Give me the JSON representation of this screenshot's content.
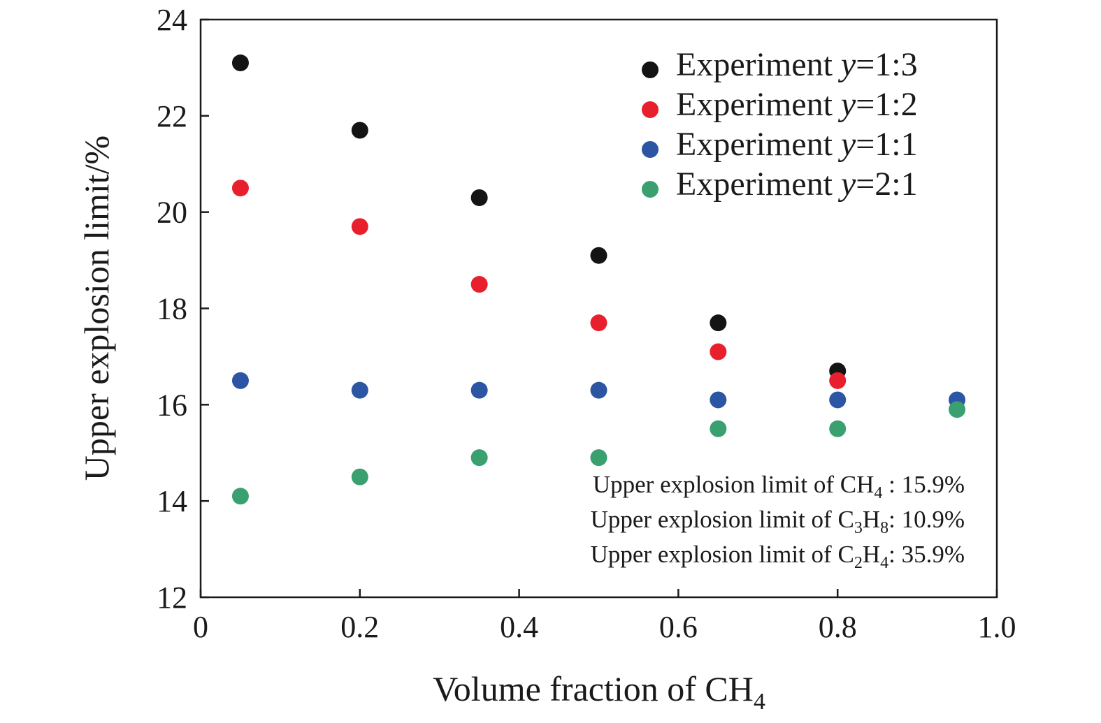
{
  "chart_data": {
    "type": "scatter",
    "xlabel": "Volume fraction of CH",
    "xlabel_sub": "4",
    "ylabel": "Upper explosion limit/%",
    "xlim": [
      0,
      1.0
    ],
    "ylim": [
      12,
      24
    ],
    "x_ticks": [
      "0",
      "0.2",
      "0.4",
      "0.6",
      "0.8",
      "1.0"
    ],
    "y_ticks": [
      "12",
      "14",
      "16",
      "18",
      "20",
      "22",
      "24"
    ],
    "legend_position": "top-right",
    "series": [
      {
        "name": "Experiment y=1:3",
        "label_prefix": "Experiment ",
        "label_var": "y",
        "label_ratio": "=1:3",
        "color": "#141414",
        "points": [
          [
            0.05,
            23.1
          ],
          [
            0.2,
            21.7
          ],
          [
            0.35,
            20.3
          ],
          [
            0.5,
            19.1
          ],
          [
            0.65,
            17.7
          ],
          [
            0.8,
            16.7
          ]
        ]
      },
      {
        "name": "Experiment y=1:2",
        "label_prefix": "Experiment ",
        "label_var": "y",
        "label_ratio": "=1:2",
        "color": "#e8202e",
        "points": [
          [
            0.05,
            20.5
          ],
          [
            0.2,
            19.7
          ],
          [
            0.35,
            18.5
          ],
          [
            0.5,
            17.7
          ],
          [
            0.65,
            17.1
          ],
          [
            0.8,
            16.5
          ]
        ]
      },
      {
        "name": "Experiment y=1:1",
        "label_prefix": "Experiment ",
        "label_var": "y",
        "label_ratio": "=1:1",
        "color": "#2c55a3",
        "points": [
          [
            0.05,
            16.5
          ],
          [
            0.2,
            16.3
          ],
          [
            0.35,
            16.3
          ],
          [
            0.5,
            16.3
          ],
          [
            0.65,
            16.1
          ],
          [
            0.8,
            16.1
          ],
          [
            0.95,
            16.1
          ]
        ]
      },
      {
        "name": "Experiment y=2:1",
        "label_prefix": "Experiment ",
        "label_var": "y",
        "label_ratio": "=2:1",
        "color": "#3aa06f",
        "points": [
          [
            0.05,
            14.1
          ],
          [
            0.2,
            14.5
          ],
          [
            0.35,
            14.9
          ],
          [
            0.5,
            14.9
          ],
          [
            0.65,
            15.5
          ],
          [
            0.8,
            15.5
          ],
          [
            0.95,
            15.9
          ]
        ]
      }
    ],
    "annotations": [
      {
        "prefix": "Upper explosion limit of C",
        "parts": [
          [
            "H",
            "4"
          ]
        ],
        "lead": "CH",
        "lead_sub": "4",
        "suffix": " : 15.9%"
      },
      {
        "prefix": "Upper explosion limit of C",
        "lead": "C",
        "lead_sub": "3",
        "mid": "H",
        "mid_sub": "8",
        "suffix": ": 10.9%"
      },
      {
        "prefix": "Upper explosion limit of C",
        "lead": "C",
        "lead_sub": "2",
        "mid": "H",
        "mid_sub": "4",
        "suffix": ": 35.9%"
      }
    ]
  }
}
